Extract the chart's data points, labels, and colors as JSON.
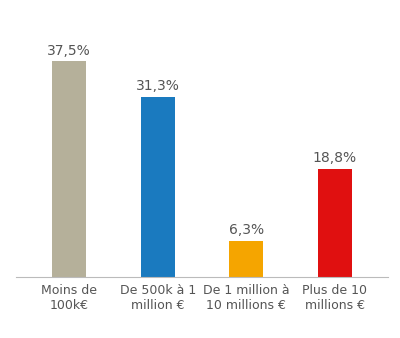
{
  "categories": [
    "Moins de\n100k€",
    "De 500k à 1\nmillion €",
    "De 1 million à\n10 millions €",
    "Plus de 10\nmillions €"
  ],
  "values": [
    37.5,
    31.3,
    6.3,
    18.8
  ],
  "labels": [
    "37,5%",
    "31,3%",
    "6,3%",
    "18,8%"
  ],
  "bar_colors": [
    "#b5b09a",
    "#1a7abf",
    "#f5a500",
    "#e01010"
  ],
  "ylim": [
    0,
    44
  ],
  "background_color": "#ffffff",
  "label_fontsize": 10,
  "tick_fontsize": 9,
  "bar_width": 0.38
}
